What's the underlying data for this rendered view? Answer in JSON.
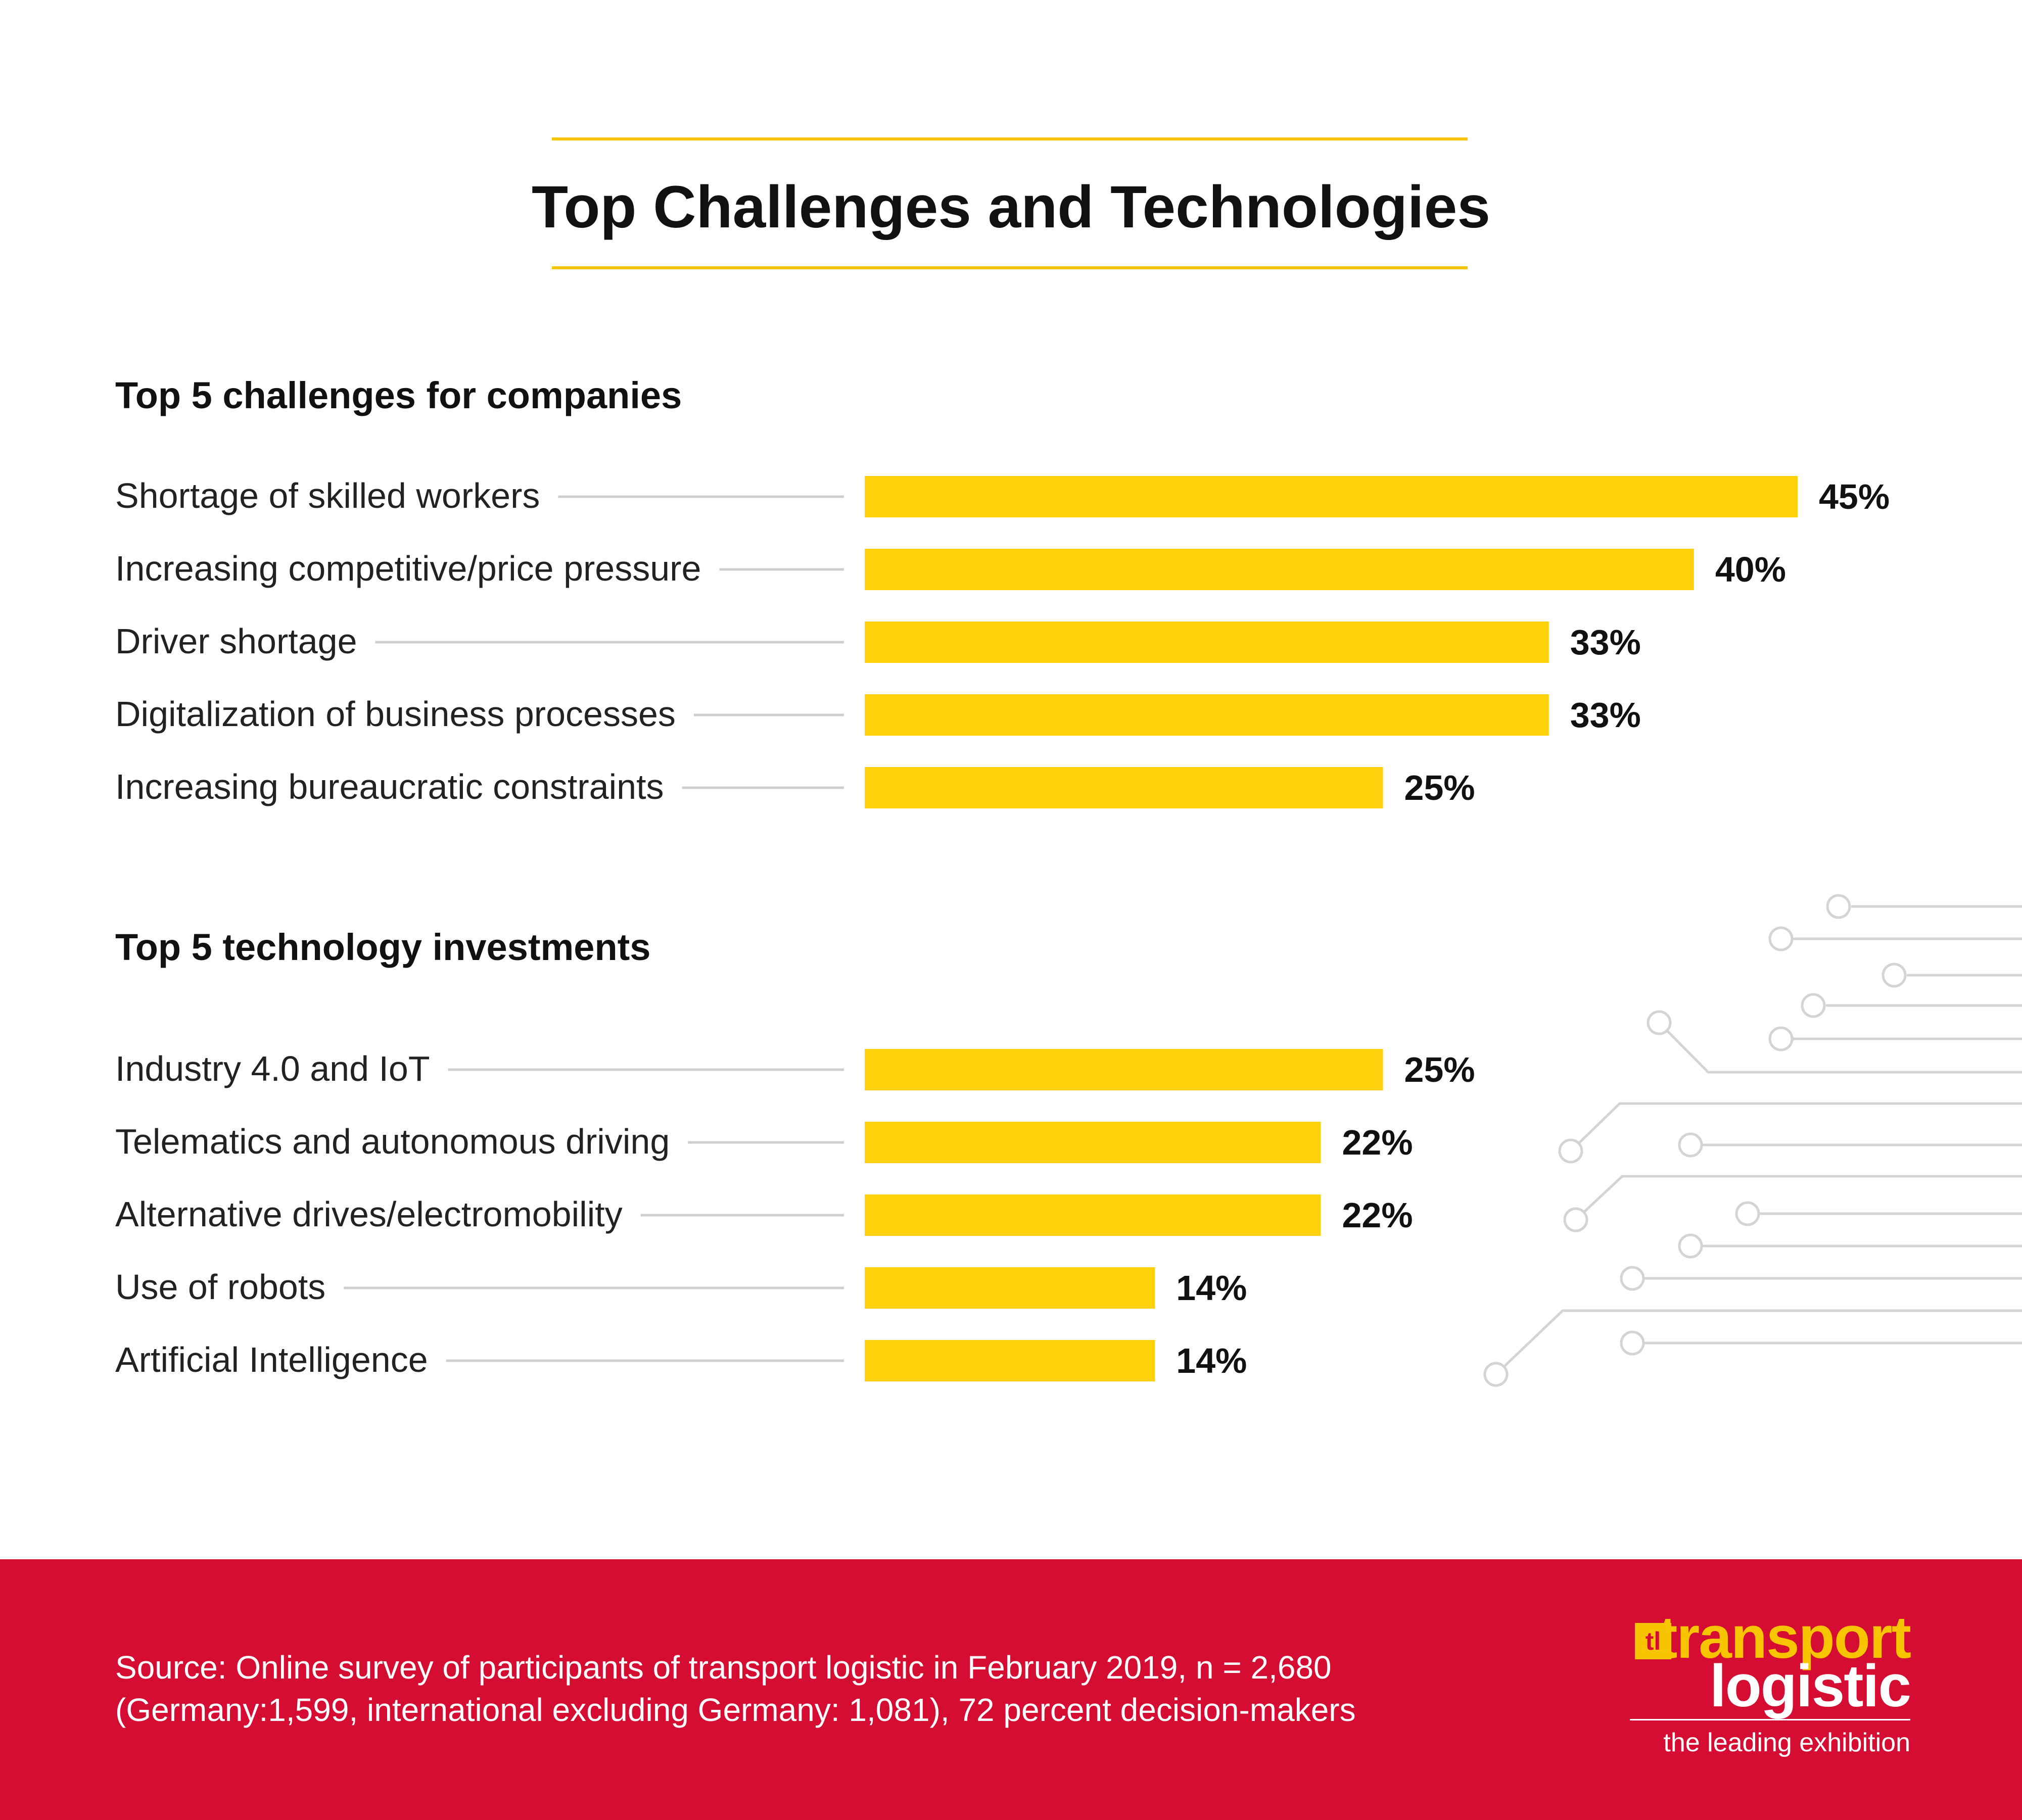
{
  "header": {
    "title": "Top Challenges and Technologies"
  },
  "chart_data": [
    {
      "type": "bar",
      "orientation": "horizontal",
      "title": "Top 5 challenges for companies",
      "categories": [
        "Shortage of skilled workers",
        "Increasing competitive/price pressure",
        "Driver shortage",
        "Digitalization of business processes",
        "Increasing bureaucratic constraints"
      ],
      "values": [
        45,
        40,
        33,
        33,
        25
      ],
      "value_labels": [
        "45%",
        "40%",
        "33%",
        "33%",
        "25%"
      ],
      "unit": "%",
      "xlim": [
        0,
        45
      ],
      "grid": false,
      "bar_color": "#ffd10a"
    },
    {
      "type": "bar",
      "orientation": "horizontal",
      "title": "Top 5 technology investments",
      "categories": [
        "Industry 4.0 and IoT",
        "Telematics and autonomous driving",
        "Alternative drives/electromobility",
        "Use of robots",
        "Artificial Intelligence"
      ],
      "values": [
        25,
        22,
        22,
        14,
        14
      ],
      "value_labels": [
        "25%",
        "22%",
        "22%",
        "14%",
        "14%"
      ],
      "unit": "%",
      "xlim": [
        0,
        45
      ],
      "grid": false,
      "bar_color": "#ffd10a"
    }
  ],
  "footer": {
    "source_line1": "Source: Online survey of participants of transport logistic in February 2019, n = 2,680",
    "source_line2": "(Germany:1,599, international excluding Germany: 1,081), 72 percent decision-makers",
    "background_color": "#d60d33"
  },
  "logo": {
    "mark": "tl",
    "word1": "transport",
    "word2": "logistic",
    "tagline": "the leading exhibition",
    "accent_color": "#f7c500"
  }
}
